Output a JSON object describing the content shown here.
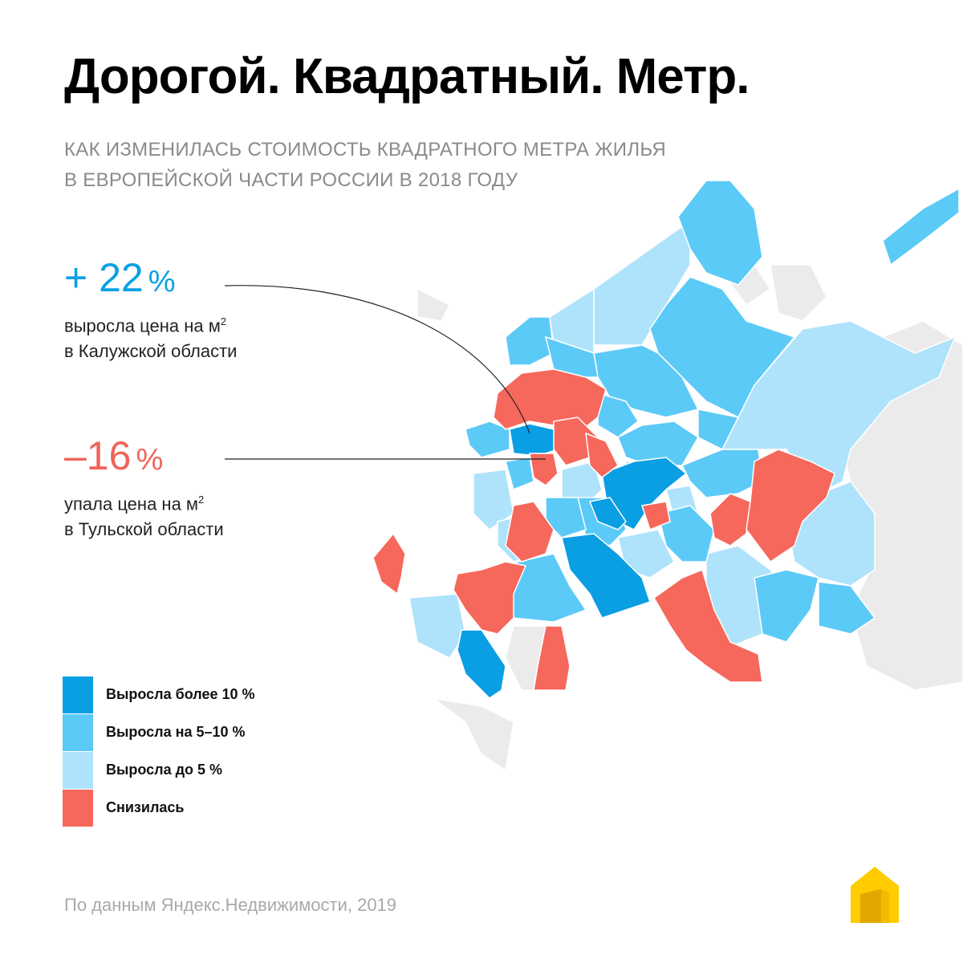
{
  "title": "Дорогой. Квадратный. Метр.",
  "subtitle": {
    "line1": "КАК ИЗМЕНИЛАСЬ СТОИМОСТЬ КВАДРАТНОГО МЕТРА ЖИЛЬЯ",
    "line2": "В ЕВРОПЕЙСКОЙ ЧАСТИ РОССИИ В 2018 ГОДУ"
  },
  "stats": {
    "up": {
      "value": "+ 22",
      "unit": "%",
      "line1": "выросла цена на м",
      "sup": "2",
      "line2": "в Калужской области"
    },
    "down": {
      "value": "–16",
      "unit": "%",
      "line1": "упала цена на м",
      "sup": "2",
      "line2": "в Тульской области"
    }
  },
  "legend": [
    {
      "label": "Выросла более 10 %",
      "color": "#0a9ee3"
    },
    {
      "label": "Выросла на 5–10 %",
      "color": "#5ccaf7"
    },
    {
      "label": "Выросла до 5 %",
      "color": "#afe3fb"
    },
    {
      "label": "Снизилась",
      "color": "#f6685c"
    }
  ],
  "colors": {
    "strong_up": "#0a9ee3",
    "up": "#5ccaf7",
    "light_up": "#afe3fb",
    "down": "#f6685c",
    "other": "#ebebeb"
  },
  "source": "По данным Яндекс.Недвижимости, 2019",
  "logo_icon": "yandex-realty-house-icon"
}
